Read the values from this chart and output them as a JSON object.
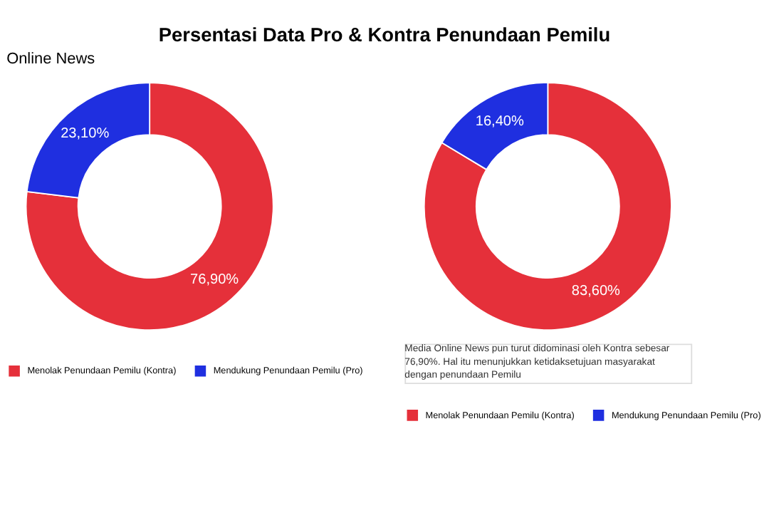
{
  "chart_data": [
    {
      "type": "donut",
      "title": "Persentasi Data Pro & Kontra Penundaan Pemilu",
      "subtitle": "Online News",
      "categories": [
        "Menolak Penundaan Pemilu (Kontra)",
        "Mendukung Penundaan Pemilu (Pro)"
      ],
      "values": [
        76.9,
        23.1
      ],
      "colors": [
        "#e5303a",
        "#1f2fe0"
      ],
      "value_labels": [
        "76,90%",
        "23,10%"
      ],
      "legend": "bottom"
    },
    {
      "type": "donut",
      "categories": [
        "Menolak Penundaan Pemilu (Kontra)",
        "Mendukung Penundaan Pemilu (Pro)"
      ],
      "values": [
        83.6,
        16.4
      ],
      "colors": [
        "#e5303a",
        "#1f2fe0"
      ],
      "value_labels": [
        "83,60%",
        "16,40%"
      ],
      "legend": "bottom",
      "annotations": [
        "Media Online News pun turut didominasi oleh Kontra sebesar 76,90%. Hal itu menunjukkan ketidaksetujuan masyarakat dengan penundaan Pemilu"
      ]
    }
  ]
}
